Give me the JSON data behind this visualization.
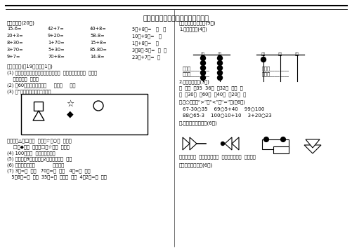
{
  "title": "大虹小学一年级数学下册期中测试题",
  "bg_color": "#ffffff",
  "text_color": "#000000",
  "section1_title": "一、口算。(20分)",
  "section1_rows": [
    [
      "15-6=",
      "42+7=",
      "40+8=",
      "5角+8角=   元   角"
    ],
    [
      "20+3=",
      "9+20=",
      "58-8=",
      "10元+9元=   元"
    ],
    [
      "8+30=",
      "1+70=",
      "15+8=",
      "1元+8角=   角"
    ],
    [
      "3+70=",
      "5+30=",
      "85-80=",
      "3元8角-5角=  元  角"
    ],
    [
      "9+7=",
      "70+8=",
      "14-8=",
      "23角+7角=  元"
    ]
  ],
  "section2_title": "二、填空。(入19分，每空1分)",
  "section2_items": [
    "(1) 一个数位图从右边数起，第一位是（  ）位，第二位是（  ）位，",
    "    第三位是（  ）位。",
    "(2) 和60相邻的两个数是（     ）和（     ）。",
    "(3) 用“上、下、左、右”填空。"
  ],
  "section2_after": [
    "上图中，△在□的（  ）边；☆在○（  ）边；",
    "    □在◆的（  ）边；□在☆的（  ）边。",
    "(4) 100是由（  ）个十组成的。",
    "(5) 个位上是9，十位上是2，这个数是（  ）。",
    "(6) 元、角、分是（            ）单位。",
    "(7) 3元=（  ）角   70角=（  ）元   4角=（  ）分",
    "   5元8角=（  ）角  35角=（  ）元（  ）角  4元2角=（  ）角"
  ],
  "section3_title": "三、按要求填一填。(9分)",
  "section3_sub1": "1.看图填数。(4分)",
  "section3_sub2_title": "2.按顺序填数。(5分)",
  "section3_sub2": [
    "（  ）（  ）35  36（  ）32（  ）（  ）",
    "（  ）30（  ）60（  ）40（  ）20（  ）"
  ],
  "section4_title": "四.在○里填上“>”、“<”或“=”。(兲6分)",
  "section4_items": [
    "67-30○35    69○5+40    99○100",
    "88○65-3    100○10+10    3+20○23"
  ],
  "section5_title": "五.数一数，填一填。(6分)",
  "section5_text": "上面一共有（  ）个三角形，（  ）个长方形，（  ）个圆。",
  "section6_title": "六、看图列算式。(6分)"
}
